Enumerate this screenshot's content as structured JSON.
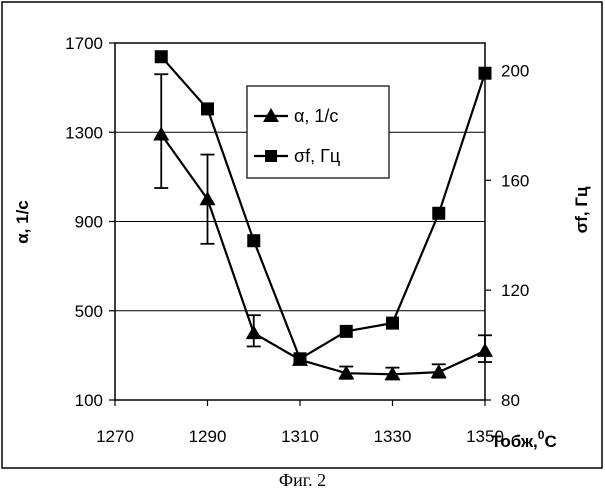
{
  "caption": "Фиг. 2",
  "chart_data": {
    "type": "line",
    "x": [
      1280,
      1290,
      1300,
      1310,
      1320,
      1330,
      1340,
      1350
    ],
    "xlim": [
      1270,
      1350
    ],
    "xticks": [
      "1270",
      "1290",
      "1310",
      "1330",
      "1350"
    ],
    "xlabel": "Тобж,",
    "xlabel_sup": "0",
    "xlabel_unit": "C",
    "ylabel": "α, 1/с",
    "ylim": [
      100,
      1700
    ],
    "yticks": [
      "100",
      "500",
      "900",
      "1300",
      "1700"
    ],
    "y2label": "σf, Гц",
    "y2lim": [
      80,
      210
    ],
    "y2ticks": [
      "80",
      "120",
      "160",
      "200"
    ],
    "legend_position": "top-center",
    "series": [
      {
        "name": "α, 1/с",
        "axis": "left",
        "marker": "triangle",
        "values": [
          1290,
          1000,
          400,
          280,
          220,
          215,
          225,
          320
        ],
        "err_lower": [
          1050,
          800,
          340,
          260,
          195,
          195,
          200,
          270
        ],
        "err_upper": [
          1560,
          1200,
          480,
          300,
          250,
          245,
          260,
          390
        ]
      },
      {
        "name": "σf, Гц",
        "axis": "right",
        "marker": "square",
        "values": [
          205,
          186,
          138,
          95,
          105,
          108,
          148,
          199
        ]
      }
    ]
  }
}
